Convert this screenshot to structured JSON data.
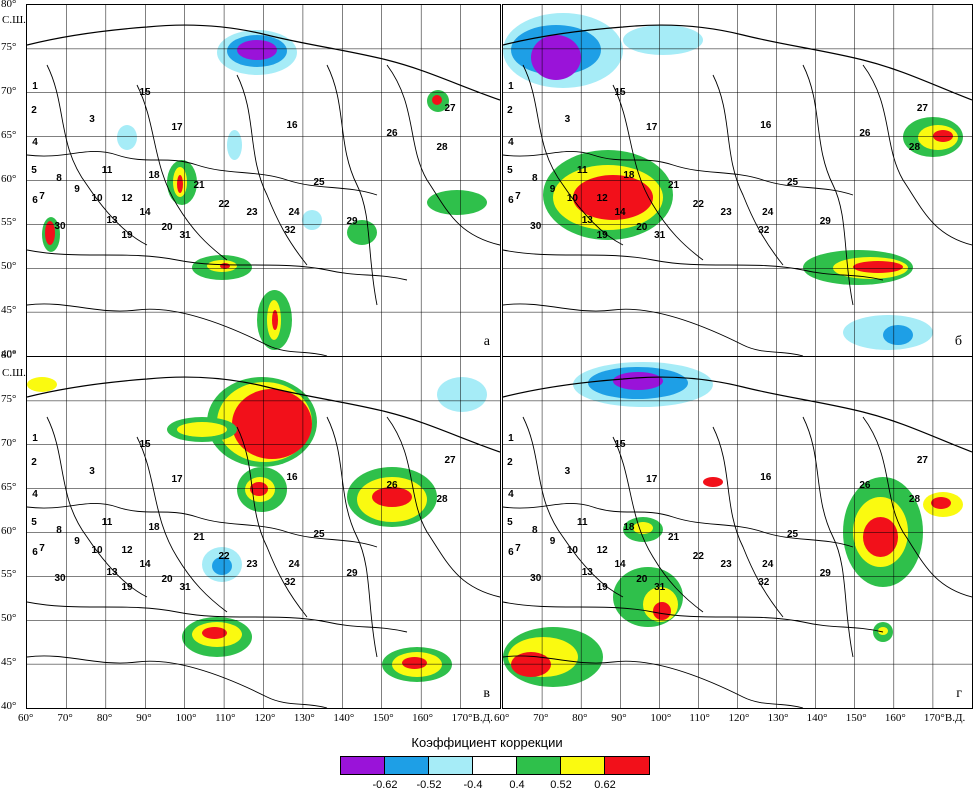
{
  "map": {
    "lat_unit": "С.Ш.",
    "lon_unit": "В.Д.",
    "lat_ticks": [
      "80°",
      "75°",
      "70°",
      "65°",
      "60°",
      "55°",
      "50°",
      "45°",
      "40°"
    ],
    "lon_ticks_left": [
      "60°",
      "70°",
      "80°",
      "90°",
      "100°",
      "110°",
      "120°",
      "130°",
      "140°",
      "150°",
      "160°",
      "170°"
    ],
    "lon_ticks_right": [
      "60°",
      "70°",
      "80°",
      "90°",
      "100°",
      "110°",
      "120°",
      "130°",
      "140°",
      "150°",
      "160°",
      "170°"
    ],
    "panels": [
      {
        "letter": "а"
      },
      {
        "letter": "б"
      },
      {
        "letter": "в"
      },
      {
        "letter": "г"
      }
    ],
    "regions": [
      "1",
      "2",
      "3",
      "4",
      "5",
      "6",
      "7",
      "8",
      "9",
      "10",
      "11",
      "12",
      "13",
      "14",
      "15",
      "16",
      "17",
      "18",
      "19",
      "20",
      "21",
      "22",
      "23",
      "24",
      "25",
      "26",
      "27",
      "28",
      "29",
      "30",
      "31",
      "32"
    ]
  },
  "legend": {
    "title": "Коэффициент коррекции",
    "colors": [
      {
        "name": "purple",
        "hex": "#9a13d9"
      },
      {
        "name": "blue",
        "hex": "#1e9fe6"
      },
      {
        "name": "light-blue",
        "hex": "#a6ecf7"
      },
      {
        "name": "white",
        "hex": "#ffffff"
      },
      {
        "name": "green",
        "hex": "#2fc04b"
      },
      {
        "name": "yellow",
        "hex": "#fafa10"
      },
      {
        "name": "red",
        "hex": "#f2101a"
      }
    ],
    "ticks": [
      "-0.62",
      "-0.52",
      "-0.4",
      "0.4",
      "0.52",
      "0.62"
    ]
  }
}
